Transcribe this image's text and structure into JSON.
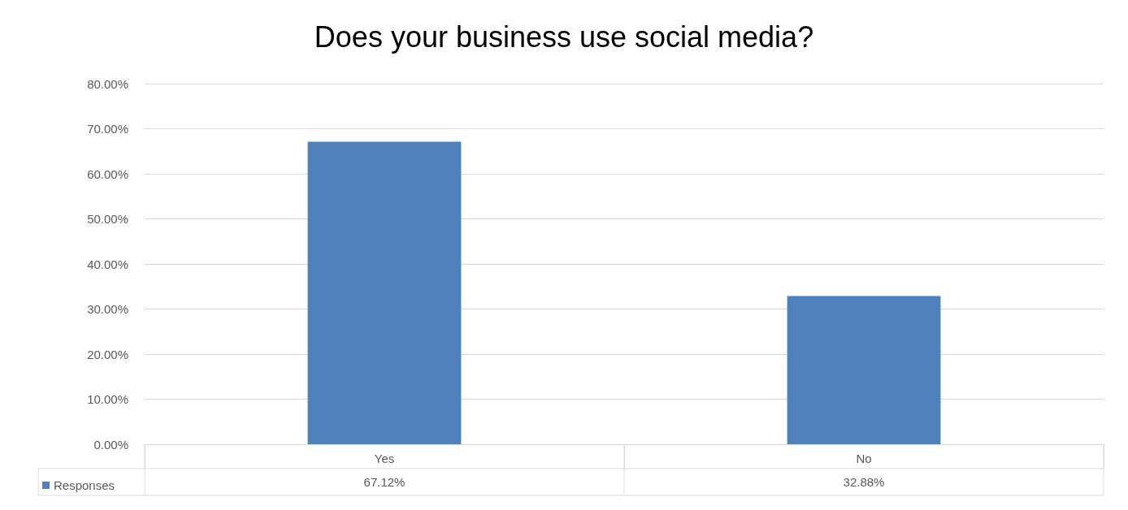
{
  "chart_data": {
    "type": "bar",
    "title": "Does your business use social media?",
    "categories": [
      "Yes",
      "No"
    ],
    "series": [
      {
        "name": "Responses",
        "color": "#4f81bd",
        "values": [
          67.12,
          32.88
        ],
        "value_labels": [
          "67.12%",
          "32.88%"
        ]
      }
    ],
    "ylim": [
      0,
      80
    ],
    "yticks": [
      {
        "value": 0,
        "label": "0.00%"
      },
      {
        "value": 10,
        "label": "10.00%"
      },
      {
        "value": 20,
        "label": "20.00%"
      },
      {
        "value": 30,
        "label": "30.00%"
      },
      {
        "value": 40,
        "label": "40.00%"
      },
      {
        "value": 50,
        "label": "50.00%"
      },
      {
        "value": 60,
        "label": "60.00%"
      },
      {
        "value": 70,
        "label": "70.00%"
      },
      {
        "value": 80,
        "label": "80.00%"
      }
    ],
    "grid": "y",
    "legend": "bottom left"
  }
}
